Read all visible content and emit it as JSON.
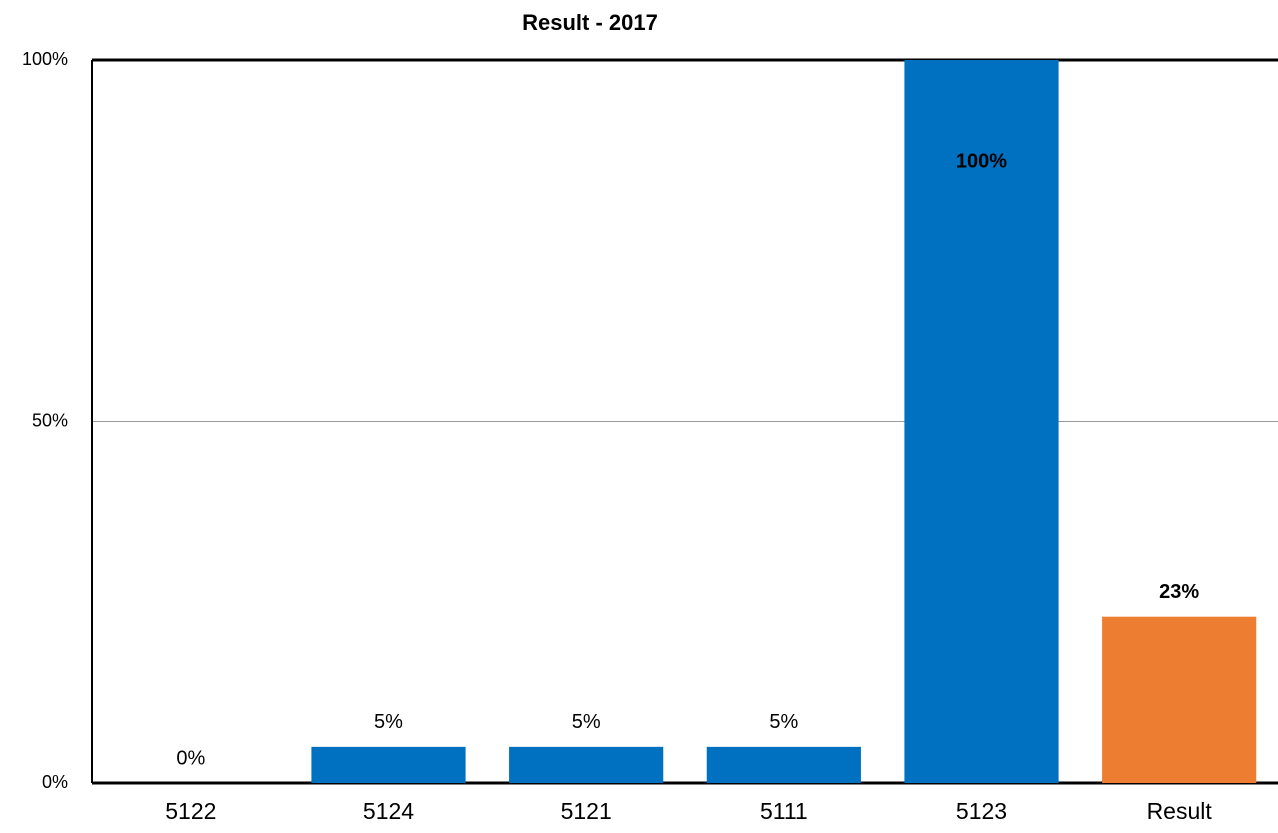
{
  "chart_data": {
    "type": "bar",
    "title": "Result - 2017",
    "categories": [
      "5122",
      "5124",
      "5121",
      "5111",
      "5123",
      "Result"
    ],
    "values": [
      0,
      5,
      5,
      5,
      100,
      23
    ],
    "value_labels": [
      "0%",
      "5%",
      "5%",
      "5%",
      "100%",
      "23%"
    ],
    "colors": [
      "#0070c0",
      "#0070c0",
      "#0070c0",
      "#0070c0",
      "#0070c0",
      "#ed7d31"
    ],
    "ylim": [
      0,
      100
    ],
    "yticks": [
      {
        "value": 0,
        "label": "0%"
      },
      {
        "value": 50,
        "label": "50%"
      },
      {
        "value": 100,
        "label": "100%"
      }
    ],
    "grid": true
  }
}
